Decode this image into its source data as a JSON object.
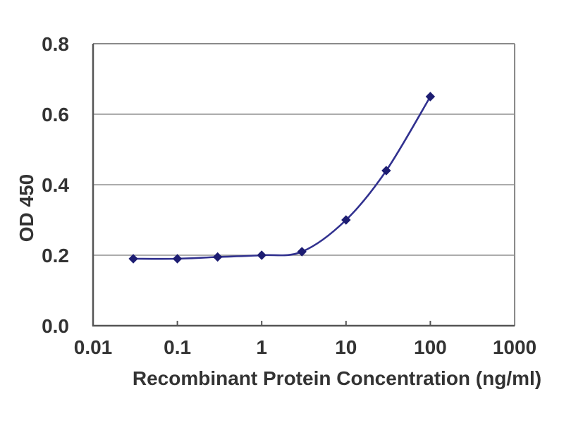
{
  "figure": {
    "description": "ELISA standard curve line chart on white background"
  },
  "chart_data": {
    "type": "line",
    "x_scale": "log",
    "x": [
      0.03,
      0.1,
      0.3,
      1,
      3,
      10,
      30,
      100
    ],
    "y": [
      0.19,
      0.19,
      0.195,
      0.2,
      0.21,
      0.3,
      0.44,
      0.65
    ],
    "title": "",
    "xlabel": "Recombinant Protein Concentration (ng/ml)",
    "ylabel": "OD 450",
    "xlim": [
      0.01,
      1000
    ],
    "ylim": [
      0,
      0.8
    ],
    "x_tick_values": [
      0.01,
      0.1,
      1,
      10,
      100,
      1000
    ],
    "x_tick_labels": [
      "0.01",
      "0.1",
      "1",
      "10",
      "100",
      "1000"
    ],
    "y_tick_values": [
      0,
      0.2,
      0.4,
      0.6,
      0.8
    ],
    "y_tick_labels": [
      "0.0",
      "0.2",
      "0.4",
      "0.6",
      "0.8"
    ],
    "grid": "horizontal-only",
    "legend": "none",
    "smooth_line": true,
    "marker_shape": "diamond",
    "colors": {
      "line": "#31318f",
      "marker": "#1d1d72",
      "gridline": "#919191",
      "frame": "#8a8a8a",
      "axis": "#555555",
      "text": "#333333",
      "background": "#ffffff"
    }
  }
}
